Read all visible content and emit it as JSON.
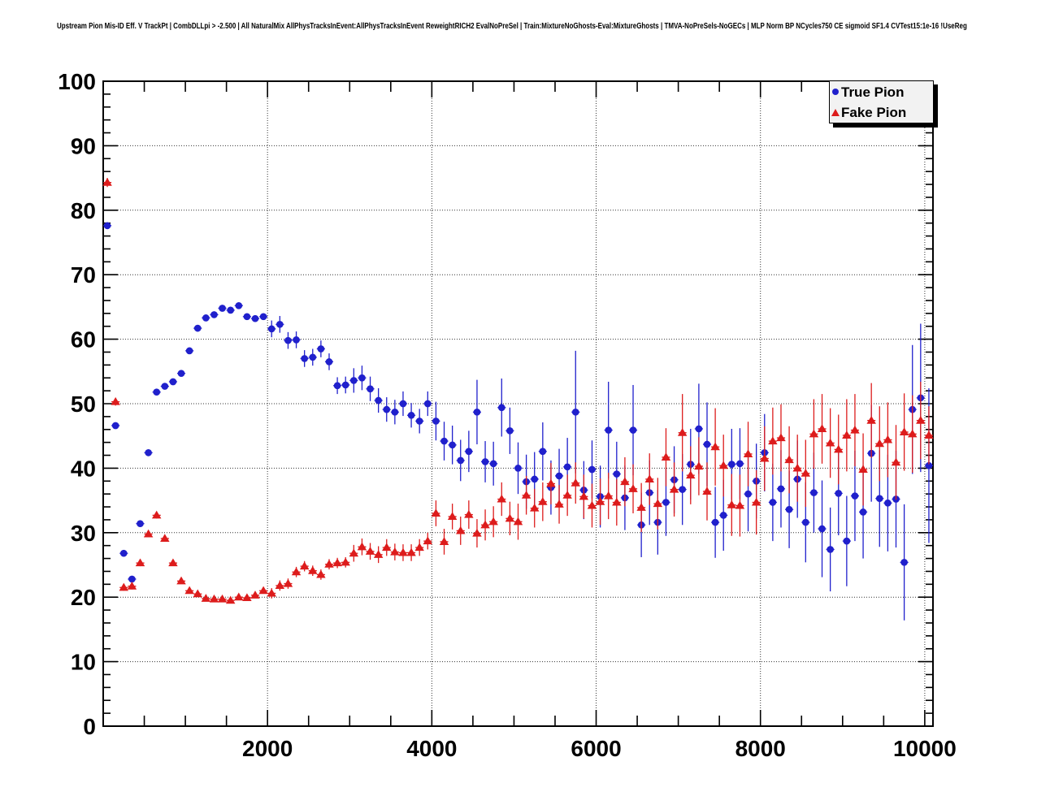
{
  "title": "Upstream Pion Mis-ID Eff. V TrackPt | CombDLLpi > -2.500 | All NaturalMix AllPhysTracksInEvent:AllPhysTracksInEvent ReweightRICH2 EvalNoPreSel | Train:MixtureNoGhosts-Eval:MixtureGhosts | TMVA-NoPreSels-NoGECs | MLP Norm BP NCycles750 CE sigmoid SF1.4 CVTest15:1e-16 !UseReg",
  "colors": {
    "true_pion": "#2020cc",
    "fake_pion": "#dd1c1c",
    "frame": "#000000",
    "grid": "#333333",
    "background": "#ffffff",
    "legend_fill": "#f2f2f2"
  },
  "legend": {
    "items": [
      {
        "label": "True Pion",
        "marker": "circle",
        "color": "#2020cc"
      },
      {
        "label": "Fake Pion",
        "marker": "triangle",
        "color": "#dd1c1c"
      }
    ]
  },
  "axes": {
    "x": {
      "min": 0,
      "max": 10100,
      "major_ticks": [
        2000,
        4000,
        6000,
        8000,
        10000
      ],
      "major_tick_labels": [
        "2000",
        "4000",
        "6000",
        "8000",
        "10000"
      ],
      "minor_step": 500
    },
    "y": {
      "min": 0,
      "max": 100,
      "major_step": 10,
      "minor_step": 2,
      "tick_labels": [
        "0",
        "10",
        "20",
        "30",
        "40",
        "50",
        "60",
        "70",
        "80",
        "90",
        "100"
      ]
    }
  },
  "chart_data": {
    "type": "scatter",
    "title": "Upstream Pion Mis-ID Eff. V TrackPt",
    "xlabel": "",
    "ylabel": "",
    "xlim": [
      0,
      10100
    ],
    "ylim": [
      0,
      100
    ],
    "grid": "dotted, at x multiples of 2000 and y multiples of 10",
    "legend_position": "top-right",
    "x": [
      50,
      150,
      250,
      350,
      450,
      550,
      650,
      750,
      850,
      950,
      1050,
      1150,
      1250,
      1350,
      1450,
      1550,
      1650,
      1750,
      1850,
      1950,
      2050,
      2150,
      2250,
      2350,
      2450,
      2550,
      2650,
      2750,
      2850,
      2950,
      3050,
      3150,
      3250,
      3350,
      3450,
      3550,
      3650,
      3750,
      3850,
      3950,
      4050,
      4150,
      4250,
      4350,
      4450,
      4550,
      4650,
      4750,
      4850,
      4950,
      5050,
      5150,
      5250,
      5350,
      5450,
      5550,
      5650,
      5750,
      5850,
      5950,
      6050,
      6150,
      6250,
      6350,
      6450,
      6550,
      6650,
      6750,
      6850,
      6950,
      7050,
      7150,
      7250,
      7350,
      7450,
      7550,
      7650,
      7750,
      7850,
      7950,
      8050,
      8150,
      8250,
      8350,
      8450,
      8550,
      8650,
      8750,
      8850,
      8950,
      9050,
      9150,
      9250,
      9350,
      9450,
      9550,
      9650,
      9750,
      9850,
      9950,
      10050
    ],
    "series": [
      {
        "name": "True Pion",
        "marker": "circle",
        "color": "#2020cc",
        "y": [
          77.6,
          46.6,
          26.8,
          22.8,
          31.4,
          42.4,
          51.8,
          52.7,
          53.4,
          54.7,
          58.2,
          61.7,
          63.3,
          63.8,
          64.8,
          64.5,
          65.2,
          63.5,
          63.2,
          63.5,
          61.6,
          62.3,
          59.8,
          59.9,
          57.0,
          57.2,
          58.5,
          56.5,
          52.8,
          52.9,
          53.6,
          54.0,
          52.3,
          50.5,
          49.1,
          48.7,
          50.0,
          48.2,
          47.3,
          50.0,
          47.3,
          44.2,
          43.6,
          41.2,
          42.6,
          48.7,
          41.0,
          40.7,
          49.4,
          45.8,
          40.0,
          37.9,
          38.3,
          42.6,
          37.0,
          38.8,
          40.2,
          48.7,
          36.6,
          39.8,
          35.6,
          45.9,
          39.1,
          35.4,
          45.9,
          31.2,
          36.2,
          31.6,
          34.7,
          38.2,
          36.7,
          40.6,
          46.1,
          43.7,
          31.6,
          32.7,
          40.6,
          40.7,
          36.0,
          38.0,
          42.4,
          34.7,
          36.8,
          33.6,
          38.3,
          31.6,
          36.2,
          30.6,
          27.4,
          36.1,
          28.7,
          35.7,
          33.2,
          42.3,
          35.3,
          34.6,
          35.2,
          25.4,
          49.1,
          50.9,
          40.4
        ],
        "yerr": [
          0.4,
          0.4,
          0.5,
          0.5,
          0.5,
          0.5,
          0.5,
          0.5,
          0.5,
          0.5,
          0.5,
          0.5,
          0.5,
          0.5,
          0.5,
          0.5,
          0.5,
          0.5,
          0.5,
          0.5,
          1.3,
          1.3,
          1.3,
          1.3,
          1.3,
          1.3,
          1.3,
          1.3,
          1.3,
          1.3,
          1.9,
          1.9,
          1.9,
          1.9,
          1.9,
          1.9,
          1.9,
          1.9,
          1.9,
          1.9,
          3.0,
          3.0,
          3.0,
          3.2,
          3.2,
          5.0,
          3.2,
          3.4,
          4.5,
          3.6,
          4.0,
          4.2,
          4.2,
          4.5,
          4.2,
          4.2,
          4.5,
          9.5,
          4.5,
          4.5,
          4.8,
          7.5,
          5.0,
          5.0,
          7.0,
          5.0,
          5.0,
          5.0,
          5.2,
          5.2,
          5.5,
          5.5,
          7.0,
          6.5,
          5.5,
          5.5,
          5.5,
          5.5,
          5.8,
          5.8,
          6.0,
          6.0,
          6.0,
          6.0,
          6.0,
          6.2,
          6.2,
          7.5,
          6.5,
          6.5,
          7.0,
          7.0,
          7.2,
          7.5,
          7.5,
          7.5,
          7.5,
          9.0,
          10.0,
          11.5,
          12.0
        ],
        "xerr_half": 50
      },
      {
        "name": "Fake Pion",
        "marker": "triangle",
        "color": "#dd1c1c",
        "y": [
          84.3,
          50.3,
          21.5,
          21.7,
          25.3,
          29.8,
          32.7,
          29.1,
          25.3,
          22.5,
          21.0,
          20.5,
          19.8,
          19.7,
          19.7,
          19.5,
          20.0,
          19.9,
          20.3,
          21.0,
          20.6,
          21.8,
          22.1,
          23.9,
          24.8,
          24.1,
          23.5,
          25.1,
          25.3,
          25.4,
          26.8,
          27.8,
          27.1,
          26.6,
          27.7,
          27.0,
          26.9,
          26.9,
          27.7,
          28.7,
          33.0,
          28.6,
          32.5,
          30.3,
          32.8,
          29.9,
          31.2,
          31.7,
          35.2,
          32.2,
          31.7,
          35.8,
          33.8,
          34.8,
          37.6,
          34.4,
          35.8,
          37.7,
          35.6,
          34.2,
          34.8,
          35.7,
          34.7,
          37.9,
          36.8,
          33.9,
          38.3,
          34.5,
          41.7,
          36.7,
          45.5,
          38.9,
          40.3,
          36.4,
          43.3,
          40.4,
          34.3,
          34.2,
          42.2,
          34.7,
          41.5,
          44.2,
          44.7,
          41.3,
          40.0,
          39.2,
          45.3,
          46.1,
          43.9,
          42.9,
          45.1,
          45.9,
          39.8,
          47.4,
          43.8,
          44.4,
          40.9,
          45.6,
          45.3,
          47.4,
          45.1
        ],
        "yerr": [
          0.7,
          0.6,
          0.5,
          0.5,
          0.5,
          0.5,
          0.5,
          0.5,
          0.4,
          0.4,
          0.35,
          0.35,
          0.35,
          0.35,
          0.35,
          0.35,
          0.35,
          0.35,
          0.35,
          0.35,
          0.8,
          0.8,
          0.8,
          0.8,
          0.8,
          0.8,
          0.8,
          0.8,
          0.8,
          0.8,
          1.3,
          1.3,
          1.3,
          1.3,
          1.3,
          1.3,
          1.3,
          1.3,
          1.3,
          1.3,
          2.0,
          2.0,
          2.0,
          2.2,
          2.2,
          2.2,
          2.4,
          2.4,
          2.6,
          2.6,
          2.8,
          3.0,
          3.0,
          3.0,
          3.2,
          3.0,
          3.2,
          3.2,
          3.4,
          3.4,
          3.6,
          3.6,
          3.6,
          3.8,
          3.8,
          3.8,
          4.0,
          4.0,
          4.5,
          4.2,
          6.0,
          4.5,
          4.5,
          4.5,
          6.0,
          4.8,
          4.8,
          4.8,
          5.0,
          5.0,
          5.0,
          5.2,
          5.2,
          5.2,
          5.2,
          5.2,
          5.4,
          5.4,
          5.4,
          5.4,
          5.6,
          5.6,
          5.6,
          5.8,
          5.8,
          5.8,
          5.8,
          6.0,
          6.0,
          6.0,
          4.5
        ],
        "xerr_half": 50
      }
    ]
  }
}
